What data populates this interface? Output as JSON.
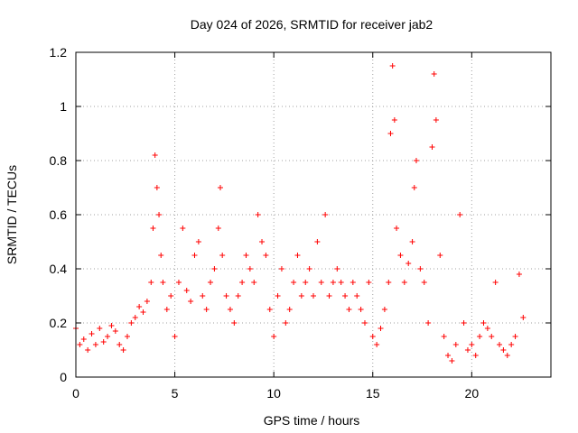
{
  "chart_data": {
    "type": "scatter",
    "title": "Day 024 of 2026, SRMTID for receiver jab2",
    "xlabel": "GPS time / hours",
    "ylabel": "SRMTID / TECUs",
    "xlim": [
      0,
      24
    ],
    "ylim": [
      0,
      1.2
    ],
    "xticks": [
      0,
      5,
      10,
      15,
      20
    ],
    "xtick_labels": [
      "0",
      "5",
      "10",
      "15",
      "20"
    ],
    "yticks": [
      0,
      0.2,
      0.4,
      0.6,
      0.8,
      1.0,
      1.2
    ],
    "ytick_labels": [
      "0",
      "0.2",
      "0.4",
      "0.6",
      "0.8",
      "1",
      "1.2"
    ],
    "grid": true,
    "marker": "plus",
    "color": "#ff0000",
    "series": [
      {
        "name": "SRMTID",
        "x": [
          0.0,
          0.2,
          0.4,
          0.6,
          0.8,
          1.0,
          1.2,
          1.4,
          1.6,
          1.8,
          2.0,
          2.2,
          2.4,
          2.6,
          2.8,
          3.0,
          3.2,
          3.4,
          3.6,
          3.8,
          3.9,
          4.0,
          4.1,
          4.2,
          4.3,
          4.4,
          4.6,
          4.8,
          5.0,
          5.2,
          5.4,
          5.6,
          5.8,
          6.0,
          6.2,
          6.4,
          6.6,
          6.8,
          7.0,
          7.2,
          7.3,
          7.4,
          7.6,
          7.8,
          8.0,
          8.2,
          8.4,
          8.6,
          8.8,
          9.0,
          9.2,
          9.4,
          9.6,
          9.8,
          10.0,
          10.2,
          10.4,
          10.6,
          10.8,
          11.0,
          11.2,
          11.4,
          11.6,
          11.8,
          12.0,
          12.2,
          12.4,
          12.6,
          12.8,
          13.0,
          13.2,
          13.4,
          13.6,
          13.8,
          14.0,
          14.2,
          14.4,
          14.6,
          14.8,
          15.0,
          15.2,
          15.4,
          15.6,
          15.8,
          15.9,
          16.0,
          16.1,
          16.2,
          16.4,
          16.6,
          16.8,
          17.0,
          17.1,
          17.2,
          17.4,
          17.6,
          17.8,
          18.0,
          18.1,
          18.2,
          18.4,
          18.6,
          18.8,
          19.0,
          19.2,
          19.4,
          19.6,
          19.8,
          20.0,
          20.2,
          20.4,
          20.6,
          20.8,
          21.0,
          21.2,
          21.4,
          21.6,
          21.8,
          22.0,
          22.2,
          22.4,
          22.6
        ],
        "y": [
          0.18,
          0.12,
          0.14,
          0.1,
          0.16,
          0.12,
          0.18,
          0.13,
          0.15,
          0.19,
          0.17,
          0.12,
          0.1,
          0.15,
          0.2,
          0.22,
          0.26,
          0.24,
          0.28,
          0.35,
          0.55,
          0.82,
          0.7,
          0.6,
          0.45,
          0.35,
          0.25,
          0.3,
          0.15,
          0.35,
          0.55,
          0.32,
          0.28,
          0.45,
          0.5,
          0.3,
          0.25,
          0.35,
          0.4,
          0.55,
          0.7,
          0.45,
          0.3,
          0.25,
          0.2,
          0.3,
          0.35,
          0.45,
          0.4,
          0.35,
          0.6,
          0.5,
          0.45,
          0.25,
          0.15,
          0.3,
          0.4,
          0.2,
          0.25,
          0.35,
          0.45,
          0.3,
          0.35,
          0.4,
          0.3,
          0.5,
          0.35,
          0.6,
          0.3,
          0.35,
          0.4,
          0.35,
          0.3,
          0.25,
          0.35,
          0.3,
          0.25,
          0.2,
          0.35,
          0.15,
          0.12,
          0.18,
          0.25,
          0.35,
          0.9,
          1.15,
          0.95,
          0.55,
          0.45,
          0.35,
          0.42,
          0.5,
          0.7,
          0.8,
          0.4,
          0.35,
          0.2,
          0.85,
          1.12,
          0.95,
          0.45,
          0.15,
          0.08,
          0.06,
          0.12,
          0.6,
          0.2,
          0.1,
          0.12,
          0.08,
          0.15,
          0.2,
          0.18,
          0.15,
          0.35,
          0.12,
          0.1,
          0.08,
          0.12,
          0.15,
          0.38,
          0.22
        ]
      }
    ]
  }
}
